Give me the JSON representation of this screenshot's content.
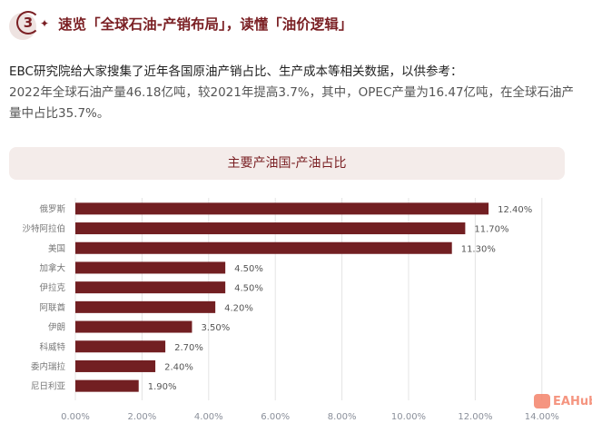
{
  "header": {
    "number": "3",
    "title": "速览「全球石油-产销布局」，读懂「油价逻辑」"
  },
  "intro": {
    "line1": "EBC研究院给大家搜集了近年各国原油产销占比、生产成本等相关数据，以供参考：",
    "line2": "2022年全球石油产量46.18亿吨，较2021年提高3.7%，其中，OPEC产量为16.47亿吨，在全球石油产量中占比35.7%。"
  },
  "chart_title": "主要产油国-产油占比",
  "chart_data": {
    "type": "bar",
    "orientation": "horizontal",
    "title": "主要产油国-产油占比",
    "categories": [
      "俄罗斯",
      "沙特阿拉伯",
      "美国",
      "加拿大",
      "伊拉克",
      "阿联酋",
      "伊朗",
      "科威特",
      "委内瑞拉",
      "尼日利亚"
    ],
    "values": [
      12.4,
      11.7,
      11.3,
      4.5,
      4.5,
      4.2,
      3.5,
      2.7,
      2.4,
      1.9
    ],
    "labels": [
      "12.40%",
      "11.70%",
      "11.30%",
      "4.50%",
      "4.50%",
      "4.20%",
      "3.50%",
      "2.70%",
      "2.40%",
      "1.90%"
    ],
    "xlim": [
      0,
      14
    ],
    "xticks": [
      "0.00%",
      "2.00%",
      "4.00%",
      "6.00%",
      "8.00%",
      "10.00%",
      "12.00%",
      "14.00%"
    ],
    "grid": true,
    "bar_color": "#721f22"
  },
  "watermark": "EAHub"
}
